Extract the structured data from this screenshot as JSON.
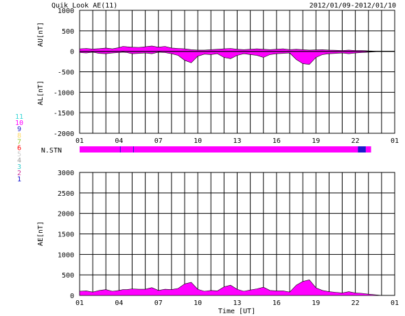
{
  "header": {
    "title": "Quik Look AE(11)",
    "date_range": "2012/01/09-2012/01/10"
  },
  "stations_legend": {
    "label": "N.STN",
    "items": [
      {
        "label": "11",
        "color": "#33d6d6"
      },
      {
        "label": "10",
        "color": "#ff00ff"
      },
      {
        "label": "9",
        "color": "#1a1acc"
      },
      {
        "label": "8",
        "color": "#ffd966"
      },
      {
        "label": "7",
        "color": "#99cc33"
      },
      {
        "label": "6",
        "color": "#ff0000"
      },
      {
        "label": "5",
        "color": "#cccccc"
      },
      {
        "label": "4",
        "color": "#999999"
      },
      {
        "label": "3",
        "color": "#33cccc"
      },
      {
        "label": "2",
        "color": "#cc3399"
      },
      {
        "label": "1",
        "color": "#0000cc"
      }
    ]
  },
  "colors": {
    "fill": "#ff00ff",
    "late_fill": "#1a1acc",
    "axis": "#000000",
    "grid": "#000000"
  },
  "chart_data": [
    {
      "type": "area",
      "panel": "AU/AL",
      "ylabel_top": "AU[nT]",
      "ylabel_bottom": "AL[nT]",
      "ylim": [
        -2000,
        1000
      ],
      "yticks": [
        "1000",
        "500",
        "0",
        "-500",
        "-1000",
        "-1500",
        "-2000"
      ],
      "xlabel": "",
      "x_ticklabels": [
        "01",
        "04",
        "07",
        "10",
        "13",
        "16",
        "19",
        "22",
        "01"
      ],
      "x_range_hours": [
        0,
        24
      ],
      "grid": true,
      "series": [
        {
          "role": "AU",
          "x": [
            0,
            0.5,
            1,
            1.5,
            2,
            2.5,
            3,
            3.3,
            3.6,
            4,
            4.5,
            5,
            5.5,
            6,
            6.5,
            7,
            7.5,
            8,
            8.5,
            9,
            9.5,
            10,
            10.5,
            11,
            11.5,
            12,
            12.5,
            13,
            13.5,
            14,
            14.5,
            15,
            15.5,
            16,
            16.5,
            17,
            17.5,
            18,
            18.5,
            19,
            19.5,
            20,
            20.5,
            21,
            21.5,
            22,
            22.5,
            23,
            23.5,
            24
          ],
          "values": [
            60,
            70,
            55,
            65,
            80,
            60,
            90,
            120,
            110,
            100,
            95,
            110,
            130,
            100,
            120,
            80,
            70,
            60,
            40,
            30,
            30,
            40,
            50,
            60,
            70,
            50,
            40,
            50,
            60,
            50,
            40,
            50,
            60,
            40,
            50,
            40,
            30,
            35,
            40,
            30,
            25,
            20,
            30,
            20,
            20,
            10,
            5,
            0,
            0,
            0
          ]
        },
        {
          "role": "AL",
          "x": [
            0,
            0.5,
            1,
            1.5,
            2,
            2.5,
            3,
            3.3,
            3.6,
            4,
            4.5,
            5,
            5.5,
            6,
            6.5,
            7,
            7.5,
            8,
            8.5,
            9,
            9.5,
            10,
            10.5,
            11,
            11.5,
            12,
            12.5,
            13,
            13.5,
            14,
            14.5,
            15,
            15.5,
            16,
            16.5,
            17,
            17.5,
            18,
            18.5,
            19,
            19.5,
            20,
            20.5,
            21,
            21.5,
            22,
            22.5,
            23,
            23.5,
            24
          ],
          "values": [
            -30,
            -40,
            -20,
            -50,
            -60,
            -40,
            -30,
            -20,
            -30,
            -60,
            -50,
            -40,
            -60,
            -20,
            -30,
            -60,
            -100,
            -220,
            -280,
            -120,
            -70,
            -80,
            -60,
            -150,
            -180,
            -100,
            -60,
            -80,
            -100,
            -150,
            -80,
            -60,
            -50,
            -40,
            -200,
            -300,
            -320,
            -150,
            -80,
            -60,
            -50,
            -40,
            -60,
            -40,
            -30,
            -20,
            -10,
            0,
            0,
            0
          ]
        }
      ]
    },
    {
      "type": "area",
      "panel": "AE",
      "ylabel": "AE[nT]",
      "xlabel": "Time [UT]",
      "ylim": [
        0,
        3000
      ],
      "yticks": [
        "3000",
        "2500",
        "2000",
        "1500",
        "1000",
        "500",
        "0"
      ],
      "x_ticklabels": [
        "01",
        "04",
        "07",
        "10",
        "13",
        "16",
        "19",
        "22",
        "01"
      ],
      "x_range_hours": [
        0,
        24
      ],
      "grid": true,
      "series": [
        {
          "role": "AE",
          "x": [
            0,
            0.5,
            1,
            1.5,
            2,
            2.5,
            3,
            3.3,
            3.6,
            4,
            4.5,
            5,
            5.5,
            6,
            6.5,
            7,
            7.5,
            8,
            8.5,
            9,
            9.5,
            10,
            10.5,
            11,
            11.5,
            12,
            12.5,
            13,
            13.5,
            14,
            14.5,
            15,
            15.5,
            16,
            16.5,
            17,
            17.5,
            18,
            18.5,
            19,
            19.5,
            20,
            20.5,
            21,
            21.5,
            22,
            22.5,
            23,
            23.5,
            24
          ],
          "values": [
            100,
            110,
            80,
            120,
            140,
            100,
            120,
            140,
            140,
            160,
            150,
            150,
            190,
            120,
            150,
            140,
            170,
            280,
            320,
            150,
            100,
            120,
            110,
            210,
            250,
            150,
            100,
            130,
            160,
            200,
            120,
            110,
            110,
            80,
            250,
            340,
            380,
            185,
            120,
            90,
            75,
            60,
            90,
            60,
            50,
            30,
            15,
            0,
            0,
            0
          ]
        }
      ]
    }
  ],
  "station_bar": {
    "segments": [
      {
        "from_hour": 0,
        "to_hour": 21.2,
        "stations": "10"
      },
      {
        "from_hour": 21.2,
        "to_hour": 21.8,
        "stations": "9"
      },
      {
        "from_hour": 21.8,
        "to_hour": 22.2,
        "stations": "10"
      }
    ],
    "ticks_at_hours": [
      3.1,
      4.1
    ]
  }
}
